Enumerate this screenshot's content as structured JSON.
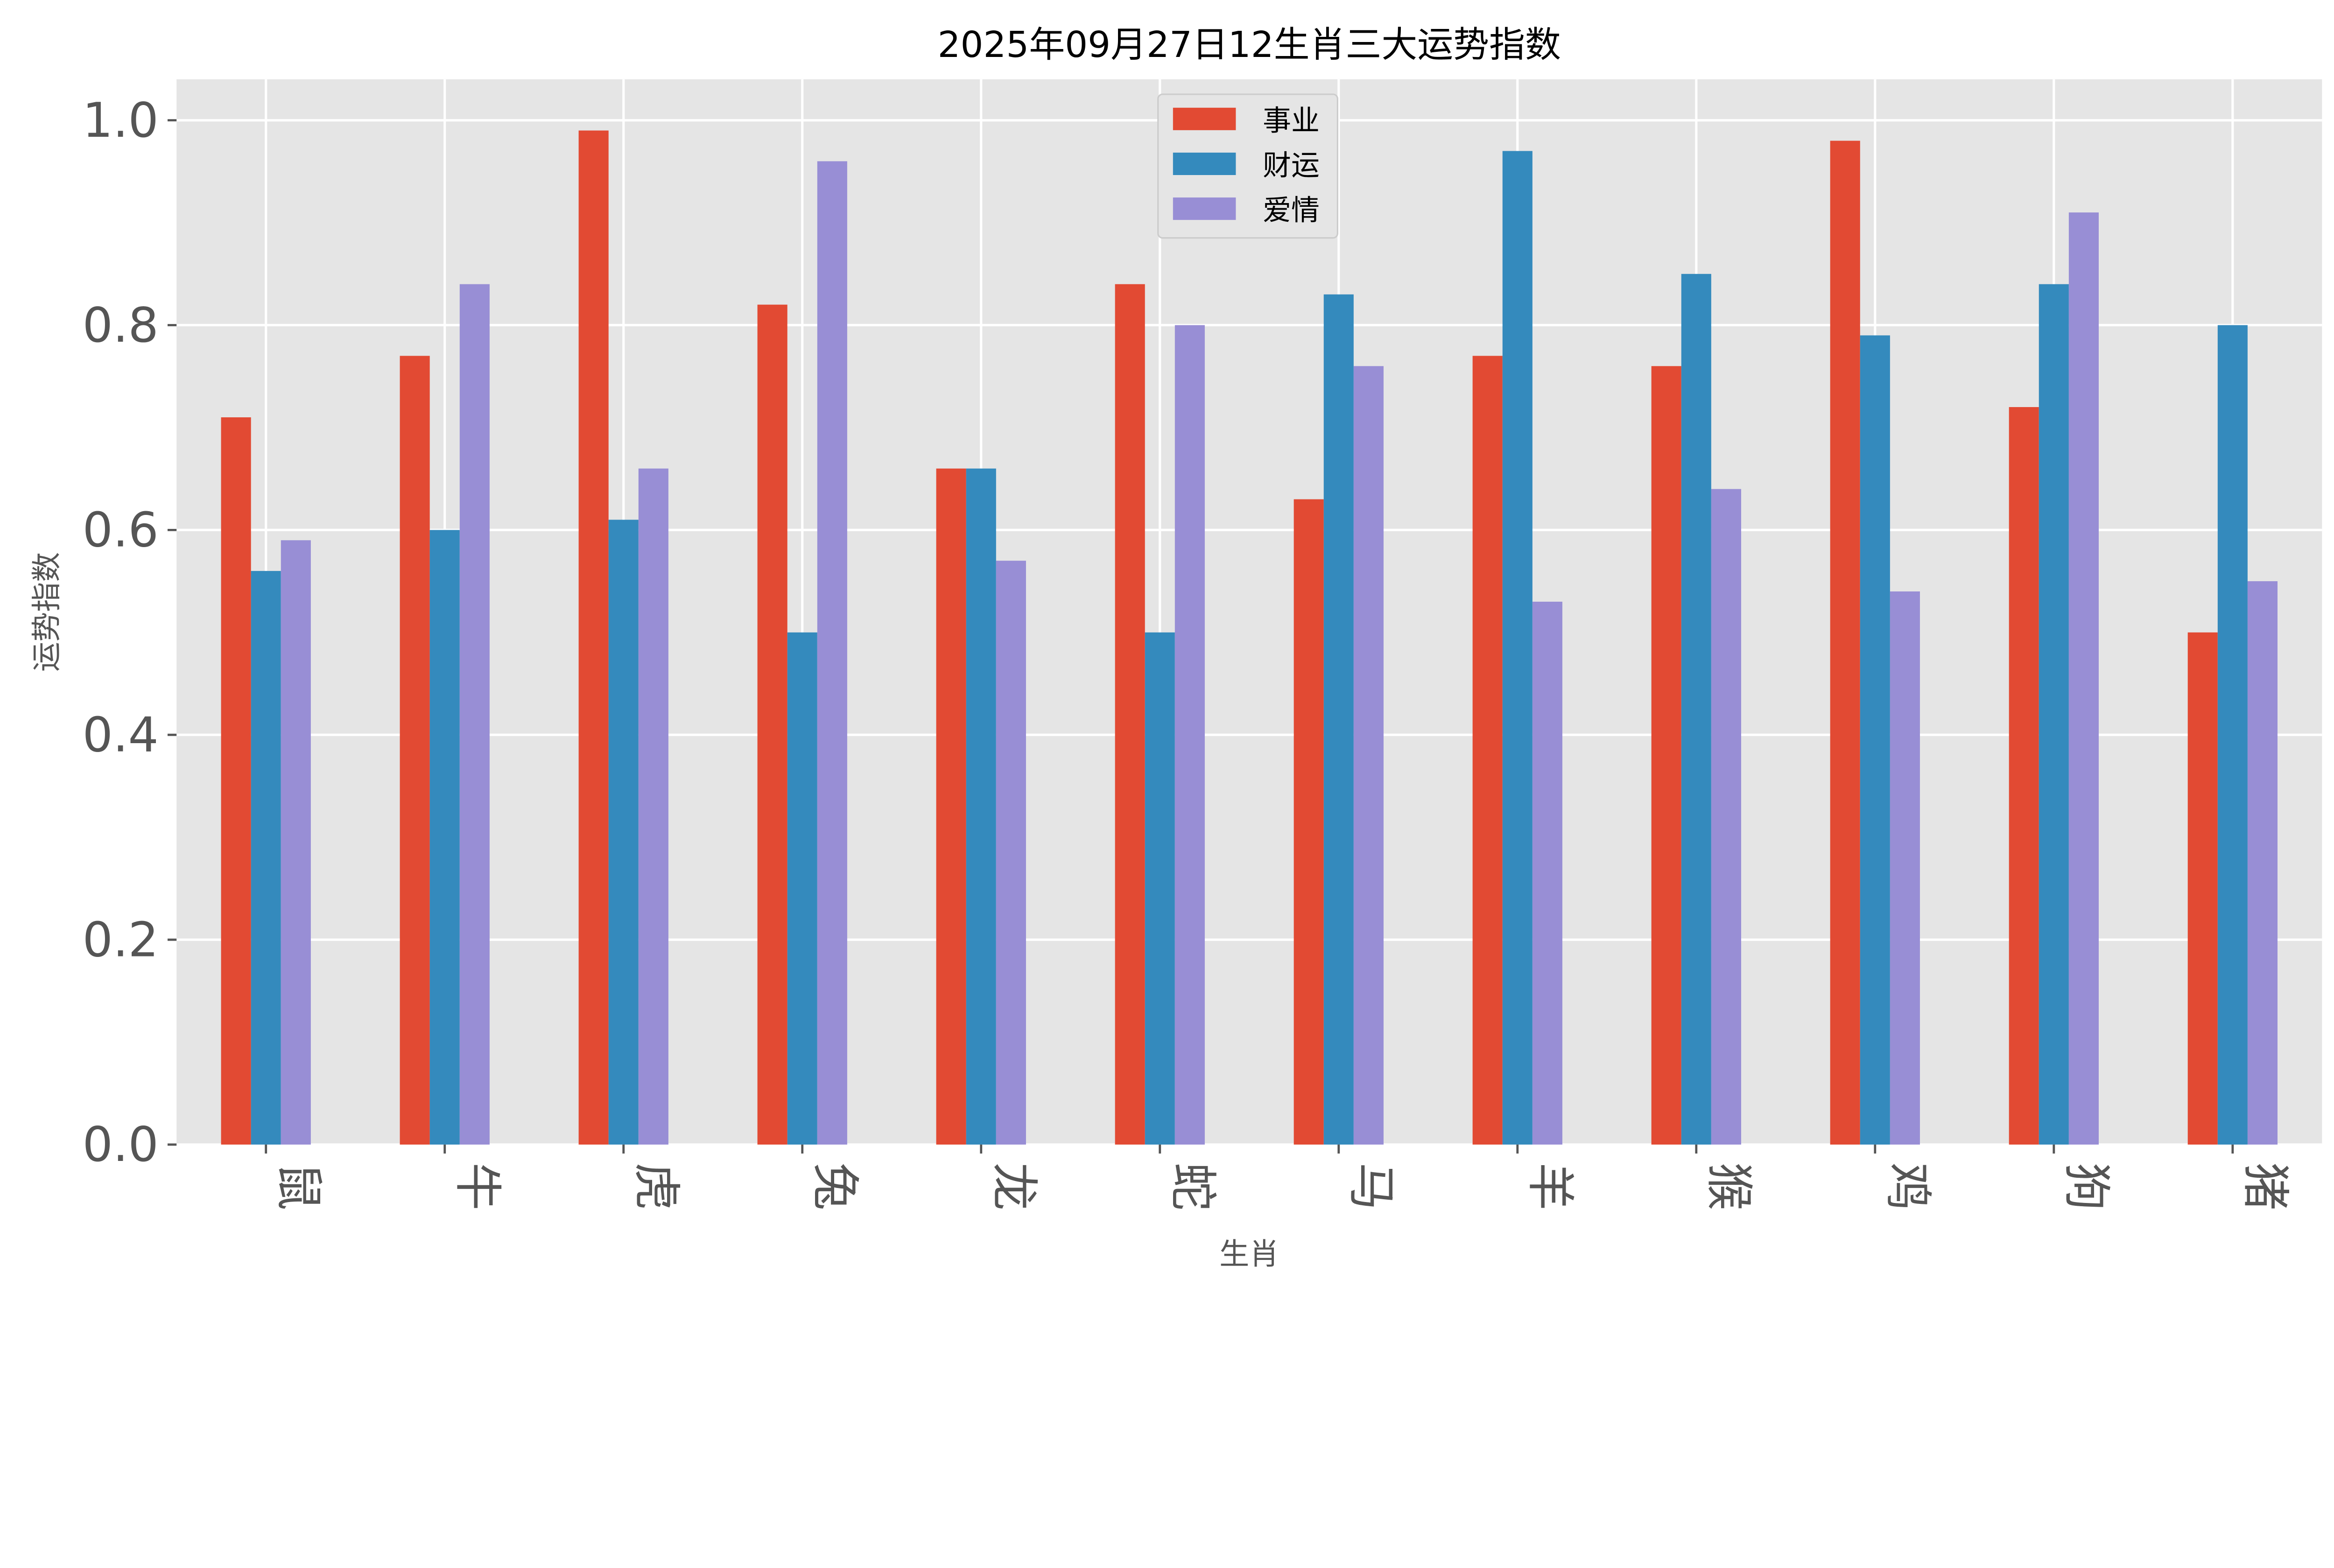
{
  "chart_data": {
    "type": "bar",
    "title": "2025年09月27日12生肖三大运势指数",
    "xlabel": "生肖",
    "ylabel": "运势指数",
    "categories": [
      "鼠",
      "牛",
      "虎",
      "兔",
      "龙",
      "蛇",
      "马",
      "羊",
      "猴",
      "鸡",
      "狗",
      "猪"
    ],
    "series": [
      {
        "name": "事业",
        "color": "#E24A33",
        "values": [
          0.71,
          0.77,
          0.99,
          0.82,
          0.66,
          0.84,
          0.63,
          0.77,
          0.76,
          0.98,
          0.72,
          0.5
        ]
      },
      {
        "name": "财运",
        "color": "#348ABD",
        "values": [
          0.56,
          0.6,
          0.61,
          0.5,
          0.66,
          0.5,
          0.83,
          0.97,
          0.85,
          0.79,
          0.84,
          0.8
        ]
      },
      {
        "name": "爱情",
        "color": "#988ED5",
        "values": [
          0.59,
          0.84,
          0.66,
          0.96,
          0.57,
          0.8,
          0.76,
          0.53,
          0.64,
          0.54,
          0.91,
          0.55
        ]
      }
    ],
    "yticks": [
      "0.0",
      "0.2",
      "0.4",
      "0.6",
      "0.8",
      "1.0"
    ],
    "ylim": [
      0,
      1.04
    ],
    "grid": true,
    "legend": "top-center",
    "background": "#E5E5E5"
  }
}
